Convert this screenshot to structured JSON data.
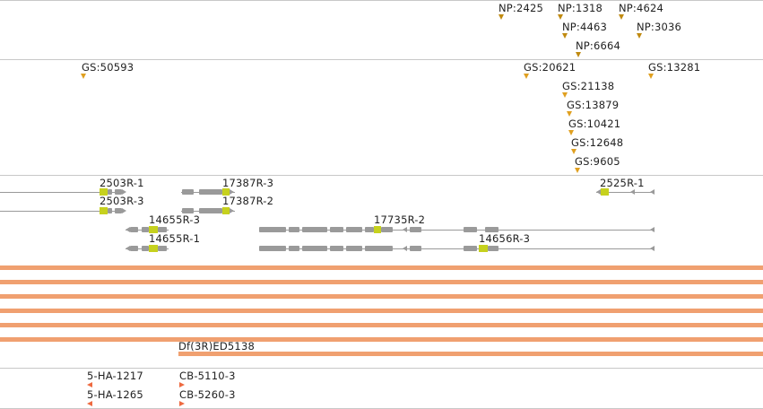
{
  "tracks": {
    "np_features": [
      {
        "label": "NP:2425"
      },
      {
        "label": "NP:1318"
      },
      {
        "label": "NP:4624"
      },
      {
        "label": "NP:4463"
      },
      {
        "label": "NP:3036"
      },
      {
        "label": "NP:6664"
      }
    ],
    "gs_features": [
      {
        "label": "GS:50593"
      },
      {
        "label": "GS:20621"
      },
      {
        "label": "GS:13281"
      },
      {
        "label": "GS:21138"
      },
      {
        "label": "GS:13879"
      },
      {
        "label": "GS:10421"
      },
      {
        "label": "GS:12648"
      },
      {
        "label": "GS:9605"
      }
    ],
    "genes": [
      {
        "label": "2503R-1"
      },
      {
        "label": "2503R-3"
      },
      {
        "label": "17387R-3"
      },
      {
        "label": "17387R-2"
      },
      {
        "label": "14655R-3"
      },
      {
        "label": "14655R-1"
      },
      {
        "label": "17735R-2"
      },
      {
        "label": "14656R-3"
      },
      {
        "label": "2525R-1"
      }
    ],
    "deficiency": {
      "label": "Df(3R)ED5138"
    },
    "constructs": [
      {
        "label": "5-HA-1217"
      },
      {
        "label": "5-HA-1265"
      },
      {
        "label": "CB-5110-3"
      },
      {
        "label": "CB-5260-3"
      }
    ]
  },
  "colors": {
    "np_marker": "#c08a10",
    "gs_marker": "#e0a020",
    "gene_line": "#999999",
    "gene_exon": "#9a9a9a",
    "gene_cds": "#c6d11e",
    "deficiency_bar": "#f0a070",
    "construct_marker": "#ee6a40"
  }
}
